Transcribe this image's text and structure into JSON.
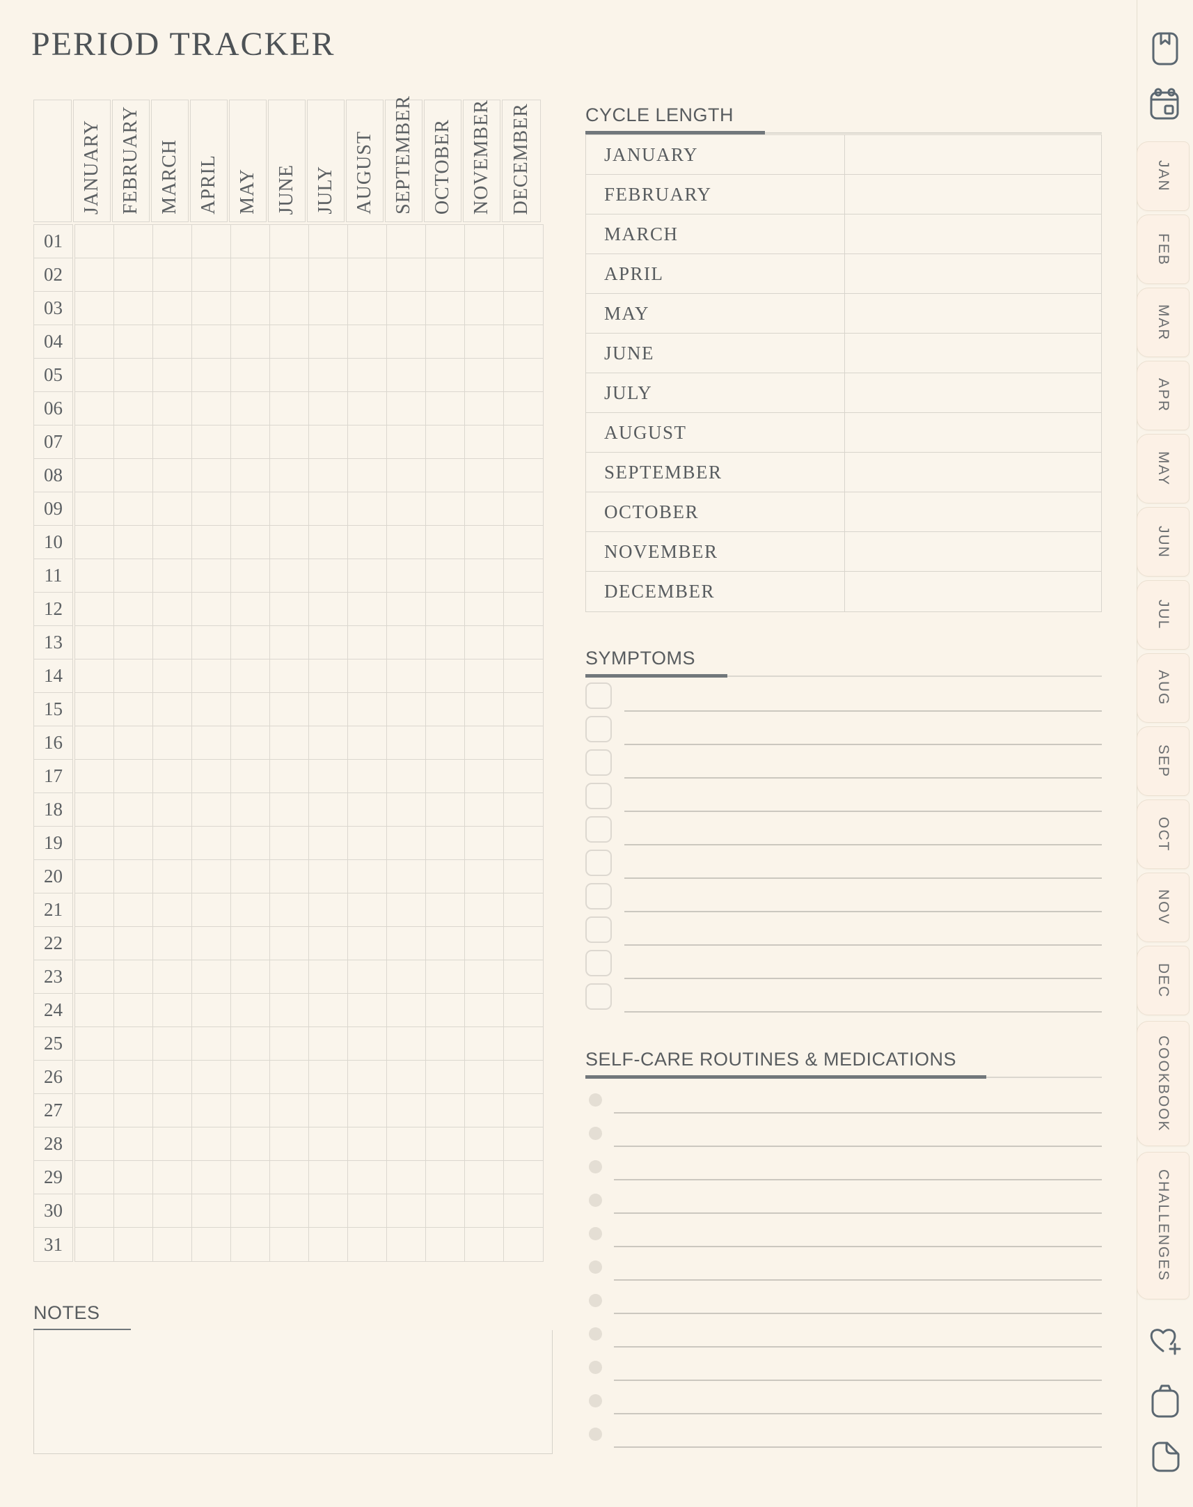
{
  "page": {
    "title": "PERIOD TRACKER"
  },
  "colors": {
    "background": "#faf4ea",
    "grid_border": "#dbd7cf",
    "write_line": "#cbc7bf",
    "heading_text": "#585c5f",
    "heading_bar": "#71777b",
    "serif_text": "#5c6063",
    "tab_fill": "#fcf1e6",
    "tab_border": "#ebe0d1",
    "icon_stroke": "#5b6771"
  },
  "tracker_grid": {
    "months": [
      "JANUARY",
      "FEBRUARY",
      "MARCH",
      "APRIL",
      "MAY",
      "JUNE",
      "JULY",
      "AUGUST",
      "SEPTEMBER",
      "OCTOBER",
      "NOVEMBER",
      "DECEMBER"
    ],
    "days": [
      "01",
      "02",
      "03",
      "04",
      "05",
      "06",
      "07",
      "08",
      "09",
      "10",
      "11",
      "12",
      "13",
      "14",
      "15",
      "16",
      "17",
      "18",
      "19",
      "20",
      "21",
      "22",
      "23",
      "24",
      "25",
      "26",
      "27",
      "28",
      "29",
      "30",
      "31"
    ]
  },
  "cycle_length": {
    "title": "CYCLE LENGTH",
    "months": [
      "JANUARY",
      "FEBRUARY",
      "MARCH",
      "APRIL",
      "MAY",
      "JUNE",
      "JULY",
      "AUGUST",
      "SEPTEMBER",
      "OCTOBER",
      "NOVEMBER",
      "DECEMBER"
    ],
    "values": [
      "",
      "",
      "",
      "",
      "",
      "",
      "",
      "",
      "",
      "",
      "",
      ""
    ]
  },
  "symptoms": {
    "title": "SYMPTOMS",
    "row_count": 10
  },
  "self_care": {
    "title": "SELF-CARE ROUTINES & MEDICATIONS",
    "row_count": 11
  },
  "notes": {
    "title": "NOTES",
    "content": ""
  },
  "side_tabs": [
    "JAN",
    "FEB",
    "MAR",
    "APR",
    "MAY",
    "JUN",
    "JUL",
    "AUG",
    "SEP",
    "OCT",
    "NOV",
    "DEC",
    "COOKBOOK",
    "CHALLENGES"
  ],
  "rail_icons": {
    "top": [
      "bookmark-book-icon",
      "calendar-icon"
    ],
    "bottom": [
      "heart-plus-icon",
      "clipboard-icon",
      "file-icon"
    ]
  }
}
